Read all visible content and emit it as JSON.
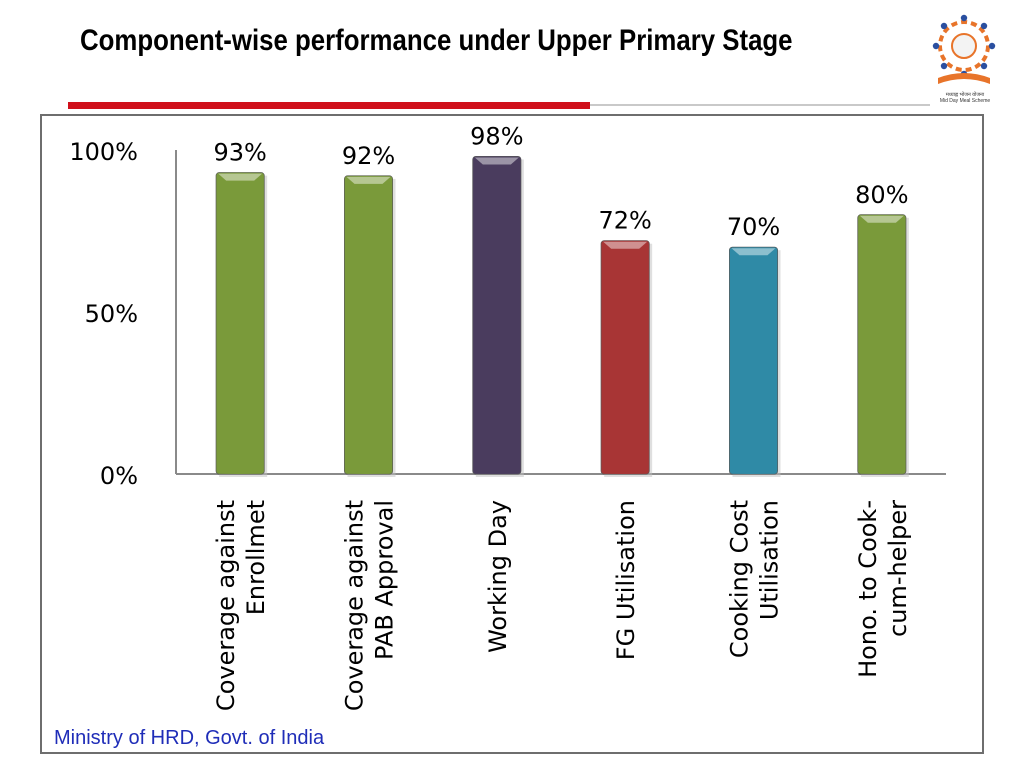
{
  "header": {
    "title": "Component-wise performance under Upper Primary Stage"
  },
  "logo": {
    "icon": "mid-day-meal-logo",
    "caption_line1": "मध्याह्न भोजन योजना",
    "caption_line2": "Mid Day Meal Scheme"
  },
  "footer": {
    "text": "Ministry of HRD, Govt. of India"
  },
  "colors": {
    "accent_red_rule": "#d0101b",
    "footer_text": "#1f2db8"
  },
  "chart_data": {
    "type": "bar",
    "categories": [
      "Coverage against\nEnrollmet",
      "Coverage against\nPAB Approval",
      "Working Day",
      "FG Utilisation",
      "Cooking Cost\nUtilisation",
      "Hono. to Cook-\ncum-helper"
    ],
    "values": [
      93,
      92,
      98,
      72,
      70,
      80
    ],
    "data_labels": [
      "93%",
      "92%",
      "98%",
      "72%",
      "70%",
      "80%"
    ],
    "bar_colors": [
      "#7a9a3a",
      "#7a9a3a",
      "#4a3c5e",
      "#a83535",
      "#2f8aa6",
      "#7a9a3a"
    ],
    "ylim": [
      0,
      100
    ],
    "yticks": [
      0,
      50,
      100
    ],
    "ytick_labels": [
      "0%",
      "50%",
      "100%"
    ],
    "title": "",
    "xlabel": "",
    "ylabel": "",
    "grid": false,
    "legend": "none"
  }
}
